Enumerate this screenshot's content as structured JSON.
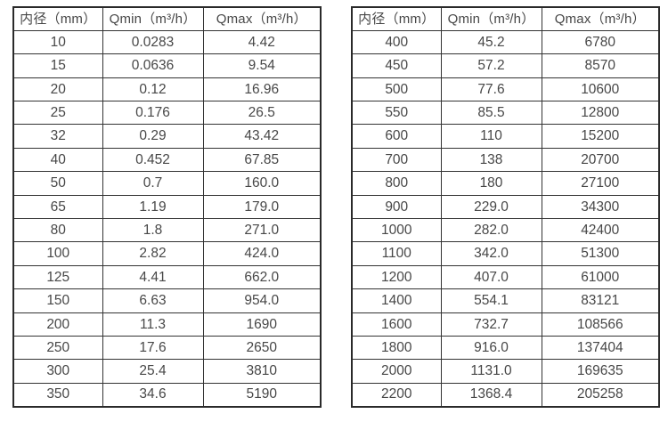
{
  "page": {
    "background": "#ffffff",
    "text_color": "#474747",
    "border_color": "#333333"
  },
  "tables": [
    {
      "name": "small-diameters",
      "headers": [
        "内径（mm）",
        "Qmin（m³/h）",
        "Qmax（m³/h）"
      ],
      "rows": [
        [
          "10",
          "0.0283",
          "4.42"
        ],
        [
          "15",
          "0.0636",
          "9.54"
        ],
        [
          "20",
          "0.12",
          "16.96"
        ],
        [
          "25",
          "0.176",
          "26.5"
        ],
        [
          "32",
          "0.29",
          "43.42"
        ],
        [
          "40",
          "0.452",
          "67.85"
        ],
        [
          "50",
          "0.7",
          "160.0"
        ],
        [
          "65",
          "1.19",
          "179.0"
        ],
        [
          "80",
          "1.8",
          "271.0"
        ],
        [
          "100",
          "2.82",
          "424.0"
        ],
        [
          "125",
          "4.41",
          "662.0"
        ],
        [
          "150",
          "6.63",
          "954.0"
        ],
        [
          "200",
          "11.3",
          "1690"
        ],
        [
          "250",
          "17.6",
          "2650"
        ],
        [
          "300",
          "25.4",
          "3810"
        ],
        [
          "350",
          "34.6",
          "5190"
        ]
      ]
    },
    {
      "name": "large-diameters",
      "headers": [
        "内径（mm）",
        "Qmin（m³/h）",
        "Qmax（m³/h）"
      ],
      "rows": [
        [
          "400",
          "45.2",
          "6780"
        ],
        [
          "450",
          "57.2",
          "8570"
        ],
        [
          "500",
          "77.6",
          "10600"
        ],
        [
          "550",
          "85.5",
          "12800"
        ],
        [
          "600",
          "110",
          "15200"
        ],
        [
          "700",
          "138",
          "20700"
        ],
        [
          "800",
          "180",
          "27100"
        ],
        [
          "900",
          "229.0",
          "34300"
        ],
        [
          "1000",
          "282.0",
          "42400"
        ],
        [
          "1100",
          "342.0",
          "51300"
        ],
        [
          "1200",
          "407.0",
          "61000"
        ],
        [
          "1400",
          "554.1",
          "83121"
        ],
        [
          "1600",
          "732.7",
          "108566"
        ],
        [
          "1800",
          "916.0",
          "137404"
        ],
        [
          "2000",
          "1131.0",
          "169635"
        ],
        [
          "2200",
          "1368.4",
          "205258"
        ]
      ]
    }
  ]
}
